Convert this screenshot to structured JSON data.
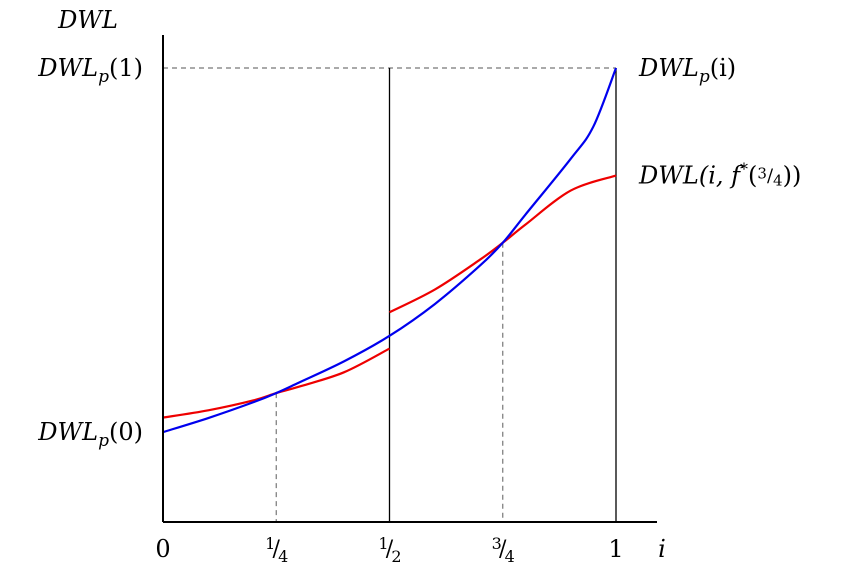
{
  "chart_data": {
    "type": "line",
    "title": "",
    "xlabel": "i",
    "ylabel": "DWL",
    "xlim": [
      0,
      1
    ],
    "ylim": [
      0,
      1
    ],
    "x_ticks": [
      {
        "value": 0,
        "label": "0"
      },
      {
        "value": 0.25,
        "label": "1/4"
      },
      {
        "value": 0.5,
        "label": "1/2"
      },
      {
        "value": 0.75,
        "label": "3/4"
      },
      {
        "value": 1,
        "label": "1"
      }
    ],
    "y_ticks": [
      {
        "value": 0.198,
        "label": "DWL_p(0)"
      },
      {
        "value": 1.0,
        "label": "DWL_p(1)"
      }
    ],
    "series": [
      {
        "name": "DWL_p(i)",
        "color": "#0000ee",
        "x": [
          0,
          0.1,
          0.2,
          0.25,
          0.3,
          0.4,
          0.5,
          0.6,
          0.7,
          0.75,
          0.8,
          0.9,
          0.95,
          1
        ],
        "y": [
          0.198,
          0.229,
          0.264,
          0.284,
          0.307,
          0.354,
          0.41,
          0.48,
          0.565,
          0.615,
          0.677,
          0.8,
          0.871,
          1.0
        ]
      },
      {
        "name": "DWL(i, f*(3/4))",
        "color": "#ee0000",
        "segments": [
          {
            "x": [
              0,
              0.1,
              0.2,
              0.25,
              0.3,
              0.4,
              0.5
            ],
            "y": [
              0.23,
              0.246,
              0.268,
              0.284,
              0.298,
              0.33,
              0.382
            ]
          },
          {
            "x": [
              0.5,
              0.6,
              0.7,
              0.75,
              0.8,
              0.9,
              1
            ],
            "y": [
              0.462,
              0.512,
              0.578,
              0.615,
              0.655,
              0.73,
              0.763
            ]
          }
        ]
      }
    ],
    "vertical_lines": [
      0.5,
      1
    ],
    "dashed_guides": {
      "x": [
        0.25,
        0.75
      ],
      "y": [
        1.0
      ]
    },
    "grid": false,
    "legend": "inline labels at right end of curves"
  }
}
